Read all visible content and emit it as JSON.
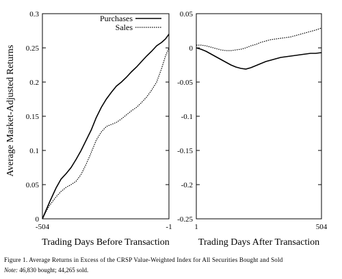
{
  "chart_data": [
    {
      "type": "line",
      "panel": "left",
      "xlabel": "Trading Days Before Transaction",
      "ylabel": "Average Market-Adjusted Returns",
      "xlim": [
        -504,
        -1
      ],
      "ylim": [
        0,
        0.3
      ],
      "x_tick_labels": [
        "-504",
        "-1"
      ],
      "y_ticks": [
        0,
        0.05,
        0.1,
        0.15,
        0.2,
        0.25,
        0.3
      ],
      "y_tick_labels": [
        "0",
        "0.05",
        "0.1",
        "0.15",
        "0.2",
        "0.25",
        "0.3"
      ],
      "legend": {
        "placement": "top-right",
        "entries": [
          "Purchases",
          "Sales"
        ]
      },
      "series": [
        {
          "name": "Purchases",
          "style": "solid",
          "x": [
            -504,
            -490,
            -475,
            -450,
            -430,
            -410,
            -390,
            -370,
            -350,
            -330,
            -310,
            -290,
            -270,
            -250,
            -230,
            -210,
            -190,
            -170,
            -150,
            -130,
            -110,
            -90,
            -70,
            -50,
            -30,
            -15,
            -1
          ],
          "y": [
            0,
            0.012,
            0.025,
            0.045,
            0.058,
            0.066,
            0.075,
            0.087,
            0.1,
            0.115,
            0.13,
            0.148,
            0.163,
            0.175,
            0.185,
            0.194,
            0.2,
            0.207,
            0.215,
            0.222,
            0.23,
            0.238,
            0.245,
            0.253,
            0.258,
            0.263,
            0.27
          ]
        },
        {
          "name": "Sales",
          "style": "dotted",
          "x": [
            -504,
            -490,
            -475,
            -450,
            -430,
            -410,
            -390,
            -370,
            -350,
            -330,
            -310,
            -290,
            -270,
            -250,
            -230,
            -210,
            -190,
            -170,
            -150,
            -130,
            -110,
            -90,
            -70,
            -50,
            -30,
            -15,
            -1
          ],
          "y": [
            0,
            0.01,
            0.02,
            0.032,
            0.04,
            0.046,
            0.05,
            0.055,
            0.065,
            0.08,
            0.097,
            0.115,
            0.127,
            0.135,
            0.138,
            0.141,
            0.146,
            0.152,
            0.158,
            0.163,
            0.17,
            0.178,
            0.188,
            0.2,
            0.22,
            0.238,
            0.25
          ]
        }
      ]
    },
    {
      "type": "line",
      "panel": "right",
      "xlabel": "Trading Days After Transaction",
      "ylabel": "",
      "xlim": [
        1,
        504
      ],
      "ylim": [
        -0.25,
        0.05
      ],
      "x_tick_labels": [
        "1",
        "504"
      ],
      "y_ticks": [
        -0.25,
        -0.2,
        -0.15,
        -0.1,
        -0.05,
        0,
        0.05
      ],
      "y_tick_labels": [
        "-0.25",
        "-0.2",
        "-0.15",
        "-0.1",
        "-0.05",
        "0",
        "0.05"
      ],
      "series": [
        {
          "name": "Purchases",
          "style": "solid",
          "x": [
            1,
            20,
            40,
            60,
            80,
            100,
            120,
            140,
            160,
            180,
            200,
            220,
            240,
            260,
            280,
            300,
            320,
            340,
            360,
            380,
            400,
            420,
            440,
            460,
            480,
            504
          ],
          "y": [
            0,
            -0.002,
            -0.005,
            -0.009,
            -0.013,
            -0.017,
            -0.021,
            -0.025,
            -0.028,
            -0.03,
            -0.031,
            -0.029,
            -0.026,
            -0.023,
            -0.02,
            -0.018,
            -0.016,
            -0.014,
            -0.013,
            -0.012,
            -0.011,
            -0.01,
            -0.009,
            -0.008,
            -0.008,
            -0.007
          ]
        },
        {
          "name": "Sales",
          "style": "dotted",
          "x": [
            1,
            20,
            40,
            60,
            80,
            100,
            120,
            140,
            160,
            180,
            200,
            220,
            240,
            260,
            280,
            300,
            320,
            340,
            360,
            380,
            400,
            420,
            440,
            460,
            480,
            504
          ],
          "y": [
            0.004,
            0.004,
            0.003,
            0.001,
            -0.001,
            -0.003,
            -0.004,
            -0.004,
            -0.003,
            -0.002,
            0,
            0.003,
            0.005,
            0.008,
            0.01,
            0.012,
            0.013,
            0.014,
            0.015,
            0.016,
            0.018,
            0.02,
            0.022,
            0.024,
            0.026,
            0.029
          ]
        }
      ]
    }
  ],
  "caption": {
    "text": "Figure 1. Average Returns in Excess of the CRSP Value-Weighted Index for All Securities Bought and Sold",
    "note_label": "Note:",
    "note_text": " 46,830 bought; 44,265 sold."
  }
}
